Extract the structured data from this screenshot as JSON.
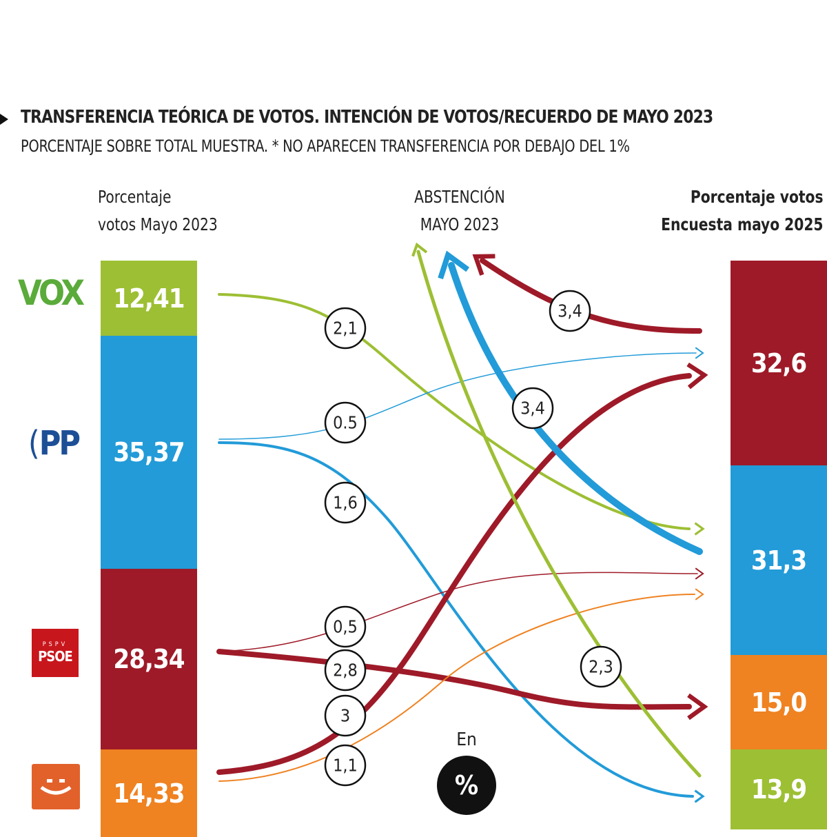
{
  "title": "TRANSFERENCIA TEÓRICA DE VOTOS. INTENCIÓN DE VOTOS/RECUERDO DE MAYO 2023",
  "subtitle": "PORCENTAJE SOBRE TOTAL MUESTRA. * NO APARECEN TRANSFERENCIA POR DEBAJO DEL 1%",
  "headers": {
    "left": [
      "Porcentaje",
      "votos Mayo 2023"
    ],
    "center": [
      "ABSTENCIÓN",
      "MAYO 2023"
    ],
    "right": [
      "Porcentaje votos",
      "Encuesta mayo 2025"
    ]
  },
  "colors": {
    "vox": "#9dbf34",
    "pp": "#229bd8",
    "psoe": "#9e1a28",
    "compromis": "#ef8221",
    "logo_vox": "#5aab3a",
    "logo_pp": "#1d4f96",
    "logo_psoe": "#c8161d",
    "logo_compromis": "#e2612b"
  },
  "left_bars": [
    {
      "party": "VOX",
      "logo": "VOX",
      "value": "12,41",
      "color": "#9dbf34"
    },
    {
      "party": "PP",
      "logo": "PP",
      "value": "35,37",
      "color": "#229bd8"
    },
    {
      "party": "PSPV-PSOE",
      "logo": "PSOE",
      "logo_small": "PSPV",
      "value": "28,34",
      "color": "#9e1a28"
    },
    {
      "party": "Compromís",
      "logo": "smile",
      "value": "14,33",
      "color": "#ef8221"
    }
  ],
  "right_bars": [
    {
      "party": "PSPV-PSOE",
      "value": "32,6",
      "color": "#9e1a28"
    },
    {
      "party": "PP",
      "value": "31,3",
      "color": "#229bd8"
    },
    {
      "party": "Compromís",
      "value": "15,0",
      "color": "#ef8221"
    },
    {
      "party": "VOX",
      "value": "13,9",
      "color": "#9dbf34"
    }
  ],
  "flows": [
    {
      "from": "VOX",
      "to": "PP",
      "label": "2,1",
      "color": "#9dbf34"
    },
    {
      "from": "PP",
      "to": "PSPV-PSOE",
      "label": "0.5",
      "color": "#229bd8"
    },
    {
      "from": "PP",
      "to": "VOX",
      "label": "1,6",
      "color": "#229bd8"
    },
    {
      "from": "PSPV-PSOE",
      "to": "PP",
      "label": "0,5",
      "color": "#9e1a28"
    },
    {
      "from": "PSPV-PSOE",
      "to": "Compromís",
      "label": "2,8",
      "color": "#9e1a28"
    },
    {
      "from": "Compromís",
      "to": "PSPV-PSOE",
      "label": "3",
      "color": "#9e1a28"
    },
    {
      "from": "Compromís",
      "to": "PP",
      "label": "1,1",
      "color": "#ef8221"
    },
    {
      "from": "Abstención",
      "to": "PSPV-PSOE",
      "label": "3,4",
      "color": "#9e1a28"
    },
    {
      "from": "Abstención",
      "to": "PP",
      "label": "3,4",
      "color": "#229bd8"
    },
    {
      "from": "Abstención",
      "to": "VOX",
      "label": "2,3",
      "color": "#9dbf34"
    }
  ],
  "unit_badge": {
    "caption": "En",
    "symbol": "%"
  }
}
